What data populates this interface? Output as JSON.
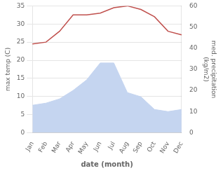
{
  "chart_data": {
    "type": "line",
    "categories": [
      "Jan",
      "Feb",
      "Mar",
      "Apr",
      "May",
      "Jun",
      "Jul",
      "Aug",
      "Sep",
      "Oct",
      "Nov",
      "Dec"
    ],
    "series": [
      {
        "type": "line",
        "color": "#c0504d",
        "values": [
          24.5,
          25.0,
          28.0,
          32.5,
          32.5,
          33.0,
          34.5,
          35.0,
          34.0,
          32.0,
          28.0,
          27.0
        ]
      },
      {
        "type": "area",
        "color": "#c5d5f0",
        "axis": "y2",
        "values": [
          13,
          14,
          16,
          20,
          25,
          33,
          33,
          19,
          17,
          11,
          10,
          11
        ]
      }
    ],
    "xlabel": "date (month)",
    "ylabel": "max temp (C)",
    "y2label": "med. precipitation\n(kg/m2)",
    "ylim": [
      0,
      35
    ],
    "yticks": [
      0,
      5,
      10,
      15,
      20,
      25,
      30,
      35
    ],
    "y2lim": [
      0,
      60
    ],
    "y2ticks": [
      0,
      10,
      20,
      30,
      40,
      50,
      60
    ],
    "grid": "y"
  }
}
